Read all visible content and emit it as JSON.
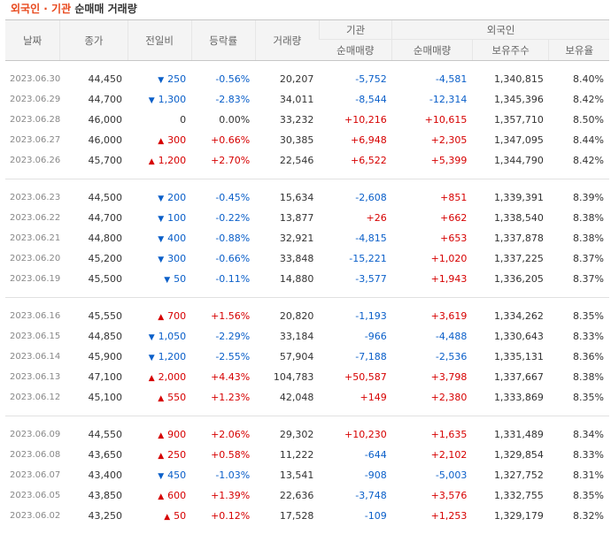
{
  "title": {
    "part1": "외국인 · 기관",
    "part2": "순매매 거래량"
  },
  "headers": {
    "date": "날짜",
    "close": "종가",
    "change": "전일비",
    "rate": "등락률",
    "volume": "거래량",
    "inst_group": "기관",
    "inst_net": "순매매량",
    "foreign_group": "외국인",
    "foreign_net": "순매매량",
    "holdings": "보유주수",
    "ratio": "보유율"
  },
  "colors": {
    "up": "#d60000",
    "down": "#0a5fc9",
    "flat": "#333333"
  },
  "icons": {
    "up": "up-triangle-icon",
    "down": "down-triangle-icon"
  },
  "groups": [
    [
      {
        "date": "2023.06.30",
        "close": "44,450",
        "dir": "down",
        "change": "250",
        "rate": "-0.56%",
        "volume": "20,207",
        "inst": "-5,752",
        "foreign": "-4,581",
        "holdings": "1,340,815",
        "ratio": "8.40%"
      },
      {
        "date": "2023.06.29",
        "close": "44,700",
        "dir": "down",
        "change": "1,300",
        "rate": "-2.83%",
        "volume": "34,011",
        "inst": "-8,544",
        "foreign": "-12,314",
        "holdings": "1,345,396",
        "ratio": "8.42%"
      },
      {
        "date": "2023.06.28",
        "close": "46,000",
        "dir": "flat",
        "change": "0",
        "rate": "0.00%",
        "volume": "33,232",
        "inst": "+10,216",
        "foreign": "+10,615",
        "holdings": "1,357,710",
        "ratio": "8.50%"
      },
      {
        "date": "2023.06.27",
        "close": "46,000",
        "dir": "up",
        "change": "300",
        "rate": "+0.66%",
        "volume": "30,385",
        "inst": "+6,948",
        "foreign": "+2,305",
        "holdings": "1,347,095",
        "ratio": "8.44%"
      },
      {
        "date": "2023.06.26",
        "close": "45,700",
        "dir": "up",
        "change": "1,200",
        "rate": "+2.70%",
        "volume": "22,546",
        "inst": "+6,522",
        "foreign": "+5,399",
        "holdings": "1,344,790",
        "ratio": "8.42%"
      }
    ],
    [
      {
        "date": "2023.06.23",
        "close": "44,500",
        "dir": "down",
        "change": "200",
        "rate": "-0.45%",
        "volume": "15,634",
        "inst": "-2,608",
        "foreign": "+851",
        "holdings": "1,339,391",
        "ratio": "8.39%"
      },
      {
        "date": "2023.06.22",
        "close": "44,700",
        "dir": "down",
        "change": "100",
        "rate": "-0.22%",
        "volume": "13,877",
        "inst": "+26",
        "foreign": "+662",
        "holdings": "1,338,540",
        "ratio": "8.38%"
      },
      {
        "date": "2023.06.21",
        "close": "44,800",
        "dir": "down",
        "change": "400",
        "rate": "-0.88%",
        "volume": "32,921",
        "inst": "-4,815",
        "foreign": "+653",
        "holdings": "1,337,878",
        "ratio": "8.38%"
      },
      {
        "date": "2023.06.20",
        "close": "45,200",
        "dir": "down",
        "change": "300",
        "rate": "-0.66%",
        "volume": "33,848",
        "inst": "-15,221",
        "foreign": "+1,020",
        "holdings": "1,337,225",
        "ratio": "8.37%"
      },
      {
        "date": "2023.06.19",
        "close": "45,500",
        "dir": "down",
        "change": "50",
        "rate": "-0.11%",
        "volume": "14,880",
        "inst": "-3,577",
        "foreign": "+1,943",
        "holdings": "1,336,205",
        "ratio": "8.37%"
      }
    ],
    [
      {
        "date": "2023.06.16",
        "close": "45,550",
        "dir": "up",
        "change": "700",
        "rate": "+1.56%",
        "volume": "20,820",
        "inst": "-1,193",
        "foreign": "+3,619",
        "holdings": "1,334,262",
        "ratio": "8.35%"
      },
      {
        "date": "2023.06.15",
        "close": "44,850",
        "dir": "down",
        "change": "1,050",
        "rate": "-2.29%",
        "volume": "33,184",
        "inst": "-966",
        "foreign": "-4,488",
        "holdings": "1,330,643",
        "ratio": "8.33%"
      },
      {
        "date": "2023.06.14",
        "close": "45,900",
        "dir": "down",
        "change": "1,200",
        "rate": "-2.55%",
        "volume": "57,904",
        "inst": "-7,188",
        "foreign": "-2,536",
        "holdings": "1,335,131",
        "ratio": "8.36%"
      },
      {
        "date": "2023.06.13",
        "close": "47,100",
        "dir": "up",
        "change": "2,000",
        "rate": "+4.43%",
        "volume": "104,783",
        "inst": "+50,587",
        "foreign": "+3,798",
        "holdings": "1,337,667",
        "ratio": "8.38%"
      },
      {
        "date": "2023.06.12",
        "close": "45,100",
        "dir": "up",
        "change": "550",
        "rate": "+1.23%",
        "volume": "42,048",
        "inst": "+149",
        "foreign": "+2,380",
        "holdings": "1,333,869",
        "ratio": "8.35%"
      }
    ],
    [
      {
        "date": "2023.06.09",
        "close": "44,550",
        "dir": "up",
        "change": "900",
        "rate": "+2.06%",
        "volume": "29,302",
        "inst": "+10,230",
        "foreign": "+1,635",
        "holdings": "1,331,489",
        "ratio": "8.34%"
      },
      {
        "date": "2023.06.08",
        "close": "43,650",
        "dir": "up",
        "change": "250",
        "rate": "+0.58%",
        "volume": "11,222",
        "inst": "-644",
        "foreign": "+2,102",
        "holdings": "1,329,854",
        "ratio": "8.33%"
      },
      {
        "date": "2023.06.07",
        "close": "43,400",
        "dir": "down",
        "change": "450",
        "rate": "-1.03%",
        "volume": "13,541",
        "inst": "-908",
        "foreign": "-5,003",
        "holdings": "1,327,752",
        "ratio": "8.31%"
      },
      {
        "date": "2023.06.05",
        "close": "43,850",
        "dir": "up",
        "change": "600",
        "rate": "+1.39%",
        "volume": "22,636",
        "inst": "-3,748",
        "foreign": "+3,576",
        "holdings": "1,332,755",
        "ratio": "8.35%"
      },
      {
        "date": "2023.06.02",
        "close": "43,250",
        "dir": "up",
        "change": "50",
        "rate": "+0.12%",
        "volume": "17,528",
        "inst": "-109",
        "foreign": "+1,253",
        "holdings": "1,329,179",
        "ratio": "8.32%"
      }
    ]
  ]
}
